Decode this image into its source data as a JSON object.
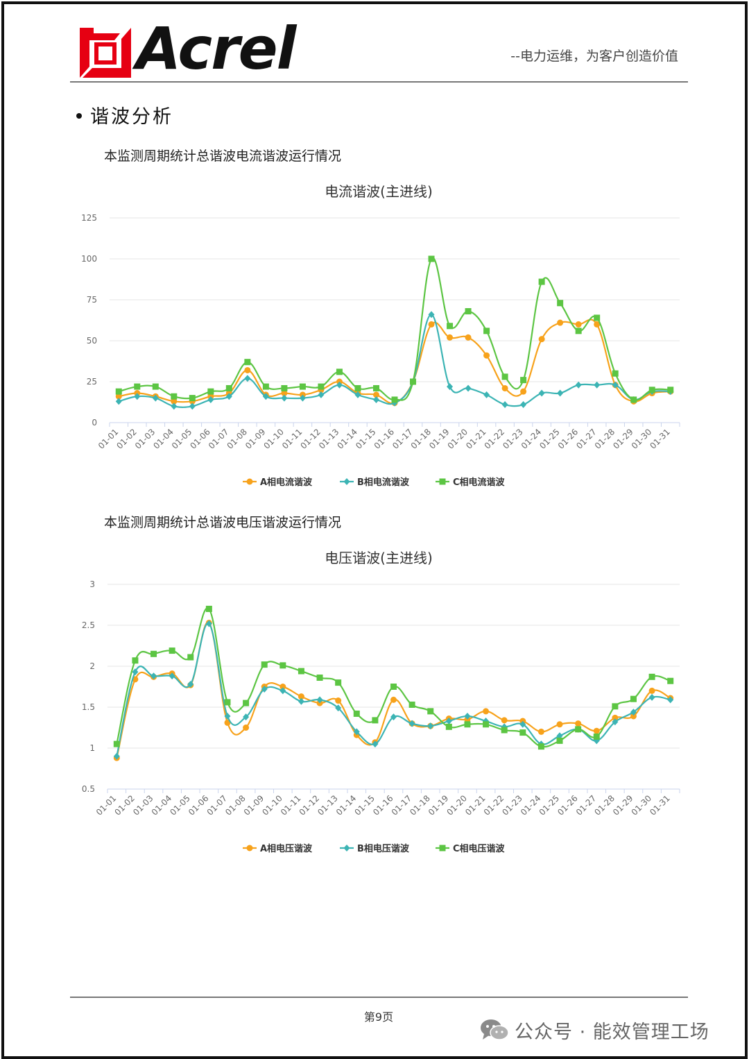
{
  "header": {
    "brand": "Acrel",
    "slogan": "--电力运维，为客户创造价值",
    "brand_color": "#e60012"
  },
  "section": {
    "title": "谐波分析"
  },
  "current_section": {
    "subtitle": "本监测周期统计总谐波电流谐波运行情况"
  },
  "voltage_section": {
    "subtitle": "本监测周期统计总谐波电压谐波运行情况"
  },
  "footer": {
    "page_label": "第9页",
    "watermark": "公众号 · 能效管理工场"
  },
  "chart_data": [
    {
      "type": "line",
      "title": "电流谐波(主进线)",
      "categories": [
        "01-01",
        "01-02",
        "01-03",
        "01-04",
        "01-05",
        "01-06",
        "01-07",
        "01-08",
        "01-09",
        "01-10",
        "01-11",
        "01-12",
        "01-13",
        "01-14",
        "01-15",
        "01-16",
        "01-17",
        "01-18",
        "01-19",
        "01-20",
        "01-21",
        "01-22",
        "01-23",
        "01-24",
        "01-25",
        "01-26",
        "01-27",
        "01-28",
        "01-29",
        "01-30",
        "01-31"
      ],
      "ylim": [
        0,
        125
      ],
      "yticks": [
        0,
        25,
        50,
        75,
        100,
        125
      ],
      "grid": true,
      "legend": "bottom",
      "series": [
        {
          "name": "A相电流谐波",
          "color": "#f7a21b",
          "marker": "circle",
          "values": [
            16,
            18,
            16,
            13,
            13,
            16,
            18,
            32,
            17,
            18,
            17,
            20,
            25,
            18,
            17,
            12,
            25,
            60,
            52,
            52,
            41,
            21,
            19,
            51,
            61,
            60,
            60,
            23,
            13,
            18,
            19
          ]
        },
        {
          "name": "B相电流谐波",
          "color": "#3cb4b4",
          "marker": "diamond",
          "values": [
            13,
            16,
            15,
            10,
            10,
            14,
            16,
            27,
            16,
            15,
            15,
            17,
            23,
            17,
            14,
            12,
            25,
            66,
            22,
            21,
            17,
            11,
            11,
            18,
            18,
            23,
            23,
            23,
            14,
            19,
            19
          ]
        },
        {
          "name": "C相电流谐波",
          "color": "#5cc543",
          "marker": "square",
          "values": [
            19,
            22,
            22,
            16,
            15,
            19,
            21,
            37,
            22,
            21,
            22,
            22,
            31,
            21,
            21,
            14,
            25,
            100,
            59,
            68,
            56,
            28,
            26,
            86,
            73,
            56,
            64,
            30,
            14,
            20,
            20
          ]
        }
      ]
    },
    {
      "type": "line",
      "title": "电压谐波(主进线)",
      "categories": [
        "01-01",
        "01-02",
        "01-03",
        "01-04",
        "01-05",
        "01-06",
        "01-07",
        "01-08",
        "01-09",
        "01-10",
        "01-11",
        "01-12",
        "01-13",
        "01-14",
        "01-15",
        "01-16",
        "01-17",
        "01-18",
        "01-19",
        "01-20",
        "01-21",
        "01-22",
        "01-23",
        "01-24",
        "01-25",
        "01-26",
        "01-27",
        "01-28",
        "01-29",
        "01-30",
        "01-31"
      ],
      "ylim": [
        0.5,
        3
      ],
      "yticks": [
        0.5,
        1,
        1.5,
        2,
        2.5,
        3
      ],
      "grid": true,
      "legend": "bottom",
      "series": [
        {
          "name": "A相电压谐波",
          "color": "#f7a21b",
          "marker": "circle",
          "values": [
            0.88,
            1.84,
            1.87,
            1.91,
            1.77,
            2.53,
            1.31,
            1.25,
            1.75,
            1.75,
            1.63,
            1.55,
            1.58,
            1.16,
            1.07,
            1.59,
            1.3,
            1.27,
            1.36,
            1.35,
            1.45,
            1.34,
            1.33,
            1.2,
            1.29,
            1.3,
            1.21,
            1.37,
            1.39,
            1.7,
            1.61
          ]
        },
        {
          "name": "B相电压谐波",
          "color": "#3cb4b4",
          "marker": "diamond",
          "values": [
            0.9,
            1.93,
            1.88,
            1.88,
            1.78,
            2.52,
            1.39,
            1.38,
            1.72,
            1.7,
            1.57,
            1.59,
            1.49,
            1.2,
            1.05,
            1.38,
            1.3,
            1.27,
            1.33,
            1.39,
            1.33,
            1.26,
            1.29,
            1.05,
            1.15,
            1.23,
            1.09,
            1.32,
            1.44,
            1.62,
            1.59
          ]
        },
        {
          "name": "C相电压谐波",
          "color": "#5cc543",
          "marker": "square",
          "values": [
            1.05,
            2.07,
            2.15,
            2.19,
            2.11,
            2.7,
            1.56,
            1.55,
            2.02,
            2.01,
            1.94,
            1.86,
            1.8,
            1.42,
            1.34,
            1.75,
            1.53,
            1.45,
            1.26,
            1.29,
            1.29,
            1.22,
            1.19,
            1.02,
            1.09,
            1.23,
            1.14,
            1.51,
            1.6,
            1.87,
            1.82
          ]
        }
      ]
    }
  ]
}
